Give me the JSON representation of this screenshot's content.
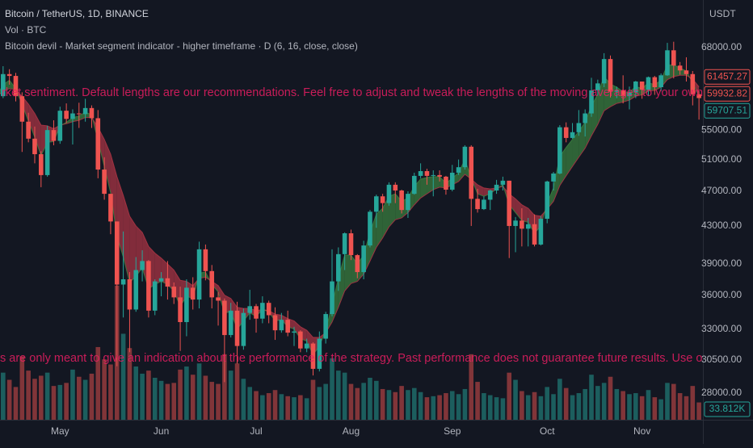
{
  "chart_data": {
    "type": "candlestick",
    "title": "Bitcoin / TetherUS, 1D, BINANCE",
    "indicator": "Bitcoin devil - Market segment indicator - higher timeframe · D (6, 16, close, close)",
    "currency": "USDT",
    "notes": [
      "rket sentiment. Default lengths are our recommendations. Feel free to adjust and tweak the lengths of the moving averages to your own preference",
      "s are only meant to give an indication about the performance of the strategy. Past performance does not guarantee future results. Use our products at yo"
    ],
    "note_color": "#e91e63",
    "log": true,
    "grid": false,
    "ylim": [
      26150,
      76800
    ],
    "yticks": [
      {
        "value": 28000,
        "label": "28000.00"
      },
      {
        "value": 30500,
        "label": "30500.00"
      },
      {
        "value": 33000,
        "label": "33000.00"
      },
      {
        "value": 36000,
        "label": "36000.00"
      },
      {
        "value": 39000,
        "label": "39000.00"
      },
      {
        "value": 43000,
        "label": "43000.00"
      },
      {
        "value": 47000,
        "label": "47000.00"
      },
      {
        "value": 51000,
        "label": "51000.00"
      },
      {
        "value": 55000,
        "label": "55000.00"
      },
      {
        "value": 68000,
        "label": "68000.00"
      }
    ],
    "up_color": "#26a69a",
    "down_color": "#ef5350",
    "categories": [
      null,
      null,
      null,
      null,
      null,
      null,
      null,
      null,
      null,
      null,
      "May",
      null,
      null,
      null,
      null,
      null,
      null,
      null,
      null,
      null,
      null,
      null,
      null,
      null,
      null,
      null,
      "Jun",
      null,
      null,
      null,
      null,
      null,
      null,
      null,
      null,
      null,
      null,
      null,
      null,
      null,
      null,
      "Jul",
      null,
      null,
      null,
      null,
      null,
      null,
      null,
      null,
      null,
      null,
      null,
      null,
      null,
      null,
      "Aug",
      null,
      null,
      null,
      null,
      null,
      null,
      null,
      null,
      null,
      null,
      null,
      null,
      null,
      null,
      null,
      "Sep",
      null,
      null,
      null,
      null,
      null,
      null,
      null,
      null,
      null,
      null,
      null,
      null,
      null,
      null,
      "Oct",
      null,
      null,
      null,
      null,
      null,
      null,
      null,
      null,
      null,
      null,
      null,
      null,
      null,
      null,
      "Nov",
      null,
      null,
      null,
      null,
      null,
      null,
      null,
      null,
      null
    ],
    "open": [
      59800,
      60000,
      63500,
      63200,
      60000,
      56200,
      53800,
      51700,
      49000,
      55000,
      53500,
      57800,
      56600,
      57400,
      57300,
      58200,
      56700,
      49700,
      46700,
      43500,
      37000,
      37500,
      34700,
      38400,
      39300,
      34600,
      37300,
      37600,
      36800,
      35800,
      33600,
      36700,
      35600,
      40500,
      38300,
      35800,
      35500,
      32500,
      34600,
      31600,
      34400,
      35000,
      33900,
      35300,
      34200,
      32900,
      33800,
      32700,
      32800,
      31400,
      31800,
      29800,
      32200,
      34300,
      37300,
      40000,
      42200,
      39900,
      38200,
      40900,
      44600,
      46400,
      45600,
      47800,
      47100,
      44800,
      46700,
      48900,
      49500,
      48900,
      49000,
      48800,
      47200,
      49300,
      50000,
      52700,
      46100,
      44900,
      46000,
      47100,
      47800,
      48300,
      43000,
      43600,
      42700,
      43200,
      41000,
      43800,
      48200,
      49200,
      55400,
      53900,
      54700,
      56000,
      57400,
      60900,
      62000,
      66000,
      60700,
      60900,
      60000,
      60600,
      62300,
      61000,
      63000,
      61400,
      63300,
      67500,
      64900,
      64100,
      63500,
      60300
    ],
    "high": [
      61200,
      64800,
      64300,
      63700,
      60600,
      57500,
      55500,
      52100,
      55600,
      56400,
      58400,
      58900,
      58000,
      59000,
      59600,
      58600,
      57900,
      51300,
      46700,
      43500,
      42400,
      38200,
      39700,
      40400,
      39400,
      37500,
      38200,
      39300,
      37200,
      36800,
      37500,
      37700,
      41300,
      41000,
      38900,
      36300,
      35700,
      35300,
      35400,
      34800,
      36500,
      35200,
      35900,
      35500,
      34900,
      34400,
      34600,
      33200,
      32900,
      32200,
      31900,
      32800,
      34500,
      40500,
      40700,
      42300,
      42600,
      40000,
      41400,
      44800,
      46600,
      46700,
      48100,
      48100,
      47200,
      47000,
      49300,
      50500,
      49800,
      49600,
      49600,
      48900,
      50300,
      51000,
      52900,
      52900,
      47300,
      46400,
      47200,
      48400,
      48800,
      48300,
      44000,
      45000,
      43900,
      44300,
      44100,
      48300,
      49400,
      55700,
      56100,
      56000,
      57900,
      58000,
      62900,
      62600,
      67000,
      66600,
      61500,
      63300,
      61500,
      62400,
      62300,
      63100,
      63200,
      63600,
      68800,
      69000,
      65500,
      66300,
      64000,
      60800
    ],
    "low": [
      58900,
      59700,
      61800,
      59200,
      52000,
      53300,
      50500,
      47500,
      48800,
      52900,
      53100,
      56000,
      53000,
      55300,
      56200,
      55300,
      48600,
      46000,
      42100,
      30000,
      34000,
      31100,
      34500,
      37300,
      34000,
      34200,
      35900,
      35600,
      35200,
      31200,
      32400,
      34700,
      34800,
      37400,
      34800,
      33300,
      28800,
      32300,
      30200,
      31300,
      33800,
      32700,
      33500,
      33500,
      32100,
      32700,
      32400,
      31600,
      31100,
      31100,
      29300,
      29600,
      31800,
      34100,
      36400,
      38400,
      39400,
      37600,
      37500,
      40700,
      42800,
      44600,
      45300,
      45600,
      44400,
      43900,
      46600,
      48600,
      47800,
      46400,
      48200,
      46600,
      47000,
      49000,
      49700,
      43000,
      44500,
      44800,
      44800,
      46700,
      47100,
      39600,
      40200,
      40800,
      40800,
      40800,
      40900,
      43300,
      47100,
      49100,
      53300,
      53800,
      54200,
      54100,
      56900,
      60100,
      61400,
      59800,
      59700,
      58900,
      58000,
      59700,
      59600,
      60000,
      60200,
      60800,
      63200,
      62800,
      63400,
      62300,
      58600,
      56500
    ],
    "close": [
      60000,
      63500,
      63200,
      60000,
      56200,
      53800,
      51700,
      49000,
      55000,
      53500,
      57800,
      56600,
      57400,
      57300,
      58200,
      56700,
      49700,
      46700,
      43500,
      37000,
      37500,
      34700,
      38400,
      39300,
      34600,
      37300,
      37600,
      36800,
      35800,
      33600,
      36700,
      35600,
      40500,
      38300,
      35800,
      35500,
      32500,
      34600,
      31600,
      34400,
      35000,
      33900,
      35300,
      34200,
      32900,
      33800,
      32700,
      32800,
      31400,
      31800,
      29800,
      32200,
      34300,
      37300,
      40000,
      42200,
      39900,
      38200,
      40900,
      44600,
      46400,
      45600,
      47800,
      47100,
      44800,
      46700,
      48900,
      49500,
      48900,
      49000,
      48800,
      47200,
      49300,
      50000,
      52700,
      46100,
      44900,
      46000,
      47100,
      47800,
      48300,
      43000,
      43600,
      42700,
      43200,
      41000,
      43800,
      48200,
      49200,
      55400,
      53900,
      54700,
      56000,
      57400,
      60900,
      62000,
      66000,
      60700,
      60900,
      60000,
      60600,
      62300,
      61000,
      63000,
      61400,
      63300,
      67500,
      64900,
      64100,
      63500,
      60300,
      59707.51
    ],
    "ma_fast": {
      "values": [
        60000,
        61800,
        62500,
        61200,
        58700,
        56300,
        54000,
        51500,
        53300,
        53400,
        55600,
        56100,
        56800,
        57000,
        57600,
        57200,
        53500,
        50100,
        46800,
        41900,
        39700,
        37200,
        37800,
        38600,
        36600,
        37000,
        37300,
        37000,
        36400,
        35000,
        35900,
        35700,
        38100,
        38200,
        37000,
        36300,
        34400,
        34500,
        33000,
        33700,
        34400,
        34100,
        34700,
        34500,
        33700,
        33800,
        33200,
        33000,
        32200,
        32000,
        30900,
        31600,
        32900,
        35100,
        37600,
        39900,
        39900,
        39000,
        39900,
        42300,
        44300,
        45000,
        46400,
        46700,
        45800,
        46200,
        47600,
        48500,
        48700,
        48800,
        48800,
        48000,
        48600,
        49300,
        51000,
        48600,
        46700,
        46400,
        46700,
        47300,
        47800,
        45400,
        44500,
        43600,
        43400,
        42200,
        43000,
        45600,
        47400,
        51400,
        52600,
        53700,
        54800,
        56100,
        58500,
        60300,
        63100,
        61900,
        61400,
        60700,
        60600,
        61500,
        61200,
        62100,
        61800,
        62500,
        65000,
        65000,
        64500,
        64000,
        62100,
        59932.82
      ]
    },
    "ma_slow": {
      "values": [
        60000,
        60700,
        61200,
        61000,
        60000,
        58800,
        57400,
        55700,
        55600,
        55200,
        55700,
        55900,
        56200,
        56400,
        56800,
        56800,
        55400,
        53700,
        51700,
        48800,
        46500,
        44100,
        43000,
        42300,
        40800,
        40100,
        39600,
        39000,
        38400,
        37400,
        37300,
        36900,
        37600,
        37700,
        37300,
        36900,
        36000,
        35700,
        34900,
        34800,
        34800,
        34600,
        34700,
        34600,
        34300,
        34200,
        33900,
        33700,
        33200,
        32900,
        32300,
        32300,
        32700,
        33600,
        34900,
        36400,
        37100,
        37300,
        38000,
        39300,
        40700,
        41700,
        42900,
        43700,
        43900,
        44500,
        45400,
        46200,
        46700,
        47200,
        47500,
        47400,
        47800,
        48200,
        49100,
        48500,
        47800,
        47400,
        47300,
        47400,
        47600,
        46700,
        46100,
        45400,
        45000,
        44200,
        44100,
        44900,
        45800,
        47700,
        48900,
        50100,
        51300,
        52500,
        54200,
        55800,
        57800,
        58400,
        58900,
        59100,
        59400,
        60000,
        60200,
        60800,
        60900,
        61400,
        62600,
        63100,
        63300,
        63300,
        62700,
        61457.27
      ]
    },
    "bull_color": "#3a7d3f",
    "bear_color": "#a83444",
    "volume": {
      "name": "Vol · BTC",
      "last_label": "33.812K",
      "values": [
        70000,
        92000,
        78000,
        64000,
        124000,
        96000,
        80000,
        86000,
        92000,
        66000,
        68000,
        72000,
        98000,
        84000,
        78000,
        90000,
        142000,
        118000,
        108000,
        262000,
        168000,
        140000,
        104000,
        90000,
        96000,
        82000,
        76000,
        70000,
        72000,
        98000,
        104000,
        88000,
        110000,
        86000,
        74000,
        70000,
        128000,
        96000,
        110000,
        80000,
        64000,
        56000,
        48000,
        52000,
        58000,
        50000,
        46000,
        44000,
        48000,
        42000,
        78000,
        64000,
        70000,
        120000,
        96000,
        92000,
        70000,
        62000,
        72000,
        82000,
        76000,
        60000,
        58000,
        54000,
        66000,
        58000,
        62000,
        54000,
        44000,
        46000,
        48000,
        52000,
        56000,
        50000,
        60000,
        128000,
        74000,
        52000,
        48000,
        44000,
        42000,
        92000,
        78000,
        56000,
        48000,
        54000,
        46000,
        64000,
        50000,
        80000,
        62000,
        48000,
        52000,
        60000,
        88000,
        66000,
        72000,
        84000,
        60000,
        56000,
        50000,
        52000,
        46000,
        58000,
        44000,
        40000,
        72000,
        70000,
        52000,
        46000,
        66000,
        33812
      ]
    },
    "vlim": [
      0,
      820000
    ]
  }
}
